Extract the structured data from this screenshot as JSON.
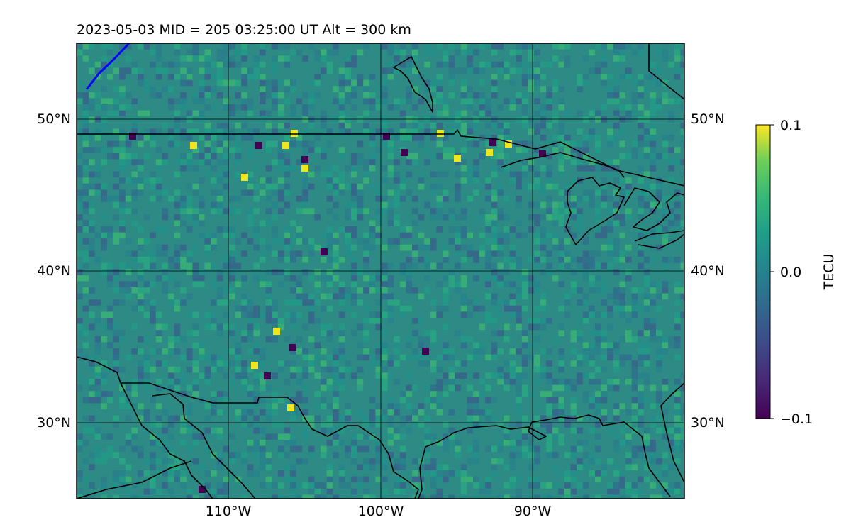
{
  "title": "2023-05-03  MID = 205    03:25:00  UT  Alt = 300 km",
  "map": {
    "lon_range": [
      -120,
      -80
    ],
    "lat_range": [
      25,
      55
    ],
    "lat_ticks": [
      {
        "value": 30,
        "label": "30°N"
      },
      {
        "value": 40,
        "label": "40°N"
      },
      {
        "value": 50,
        "label": "50°N"
      }
    ],
    "lon_ticks": [
      {
        "value": -110,
        "label": "110°W"
      },
      {
        "value": -100,
        "label": "100°W"
      },
      {
        "value": -90,
        "label": "90°W"
      }
    ],
    "grid": true,
    "coastlines": true,
    "borders": true
  },
  "colorbar": {
    "label": "TECU",
    "min": -0.1,
    "max": 0.1,
    "colormap": "viridis",
    "ticks": [
      {
        "value": 0.1,
        "label": "0.1"
      },
      {
        "value": 0.0,
        "label": "0.0"
      },
      {
        "value": -0.1,
        "label": "−0.1"
      }
    ]
  },
  "colors": {
    "field_base": "#2d8a84",
    "high": "#f0e620",
    "low": "#440154",
    "track": "#0000ff"
  }
}
